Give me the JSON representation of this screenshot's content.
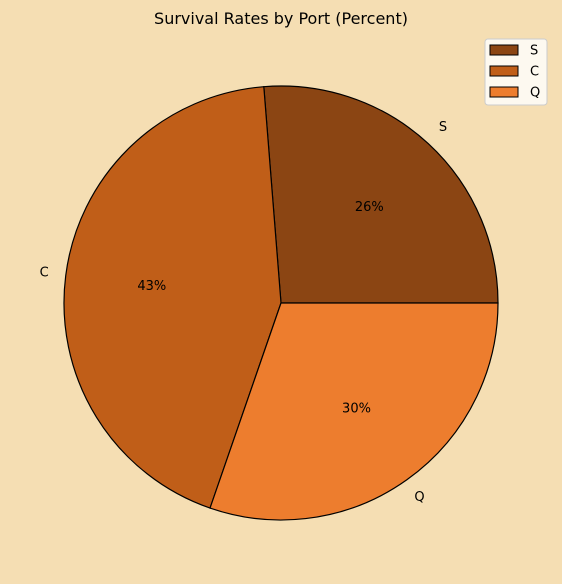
{
  "chart_data": {
    "type": "pie",
    "title": "Survival Rates by Port (Percent)",
    "categories": [
      "S",
      "C",
      "Q"
    ],
    "values": [
      26,
      43,
      30
    ],
    "percent_labels": [
      "26%",
      "43%",
      "30%"
    ],
    "colors": [
      "#8b4513",
      "#c05e18",
      "#ed7d2e"
    ],
    "start_angle_deg": 0,
    "direction": "counterclockwise",
    "legend": {
      "position": "top-right",
      "entries": [
        "S",
        "C",
        "Q"
      ]
    },
    "edge_color": "#000000",
    "background_color": "#f5deb3"
  }
}
